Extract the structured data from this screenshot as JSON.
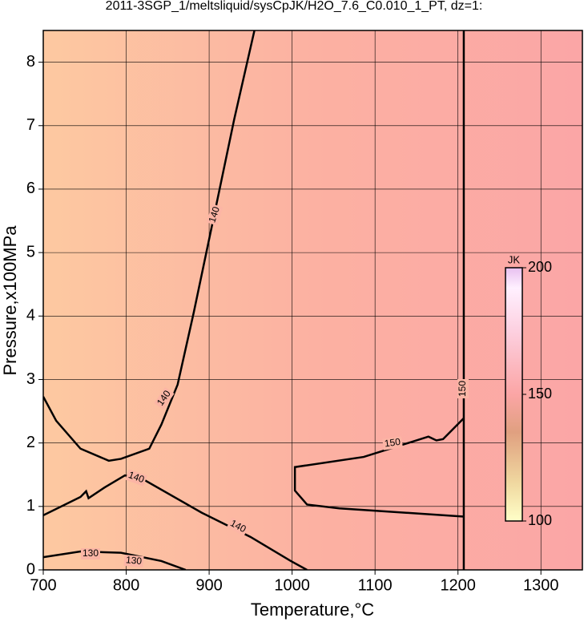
{
  "chart_data": {
    "type": "contour",
    "title": "2011-3SGP_1/meltsliquid/sysCpJK/H2O_7.6_C0.010_1_PT, dz=1:",
    "x_label": "Temperature,°C",
    "y_label": "Pressure,x100MPa",
    "xlim": [
      700,
      1350
    ],
    "ylim": [
      0,
      8.5
    ],
    "xticks": [
      700,
      800,
      900,
      1000,
      1100,
      1200,
      1300
    ],
    "yticks": [
      0,
      1,
      2,
      3,
      4,
      5,
      6,
      7,
      8
    ],
    "grid": true,
    "contours": [
      {
        "level": 140,
        "x": [
          700,
          715.6,
          744.9,
          779,
          793.7,
          827.8,
          842.4,
          862,
          881.5,
          905.9,
          930.2,
          954.6
        ],
        "y": [
          2.73,
          2.35,
          1.91,
          1.72,
          1.75,
          1.91,
          2.29,
          2.92,
          4.06,
          5.58,
          7.1,
          8.5
        ]
      },
      {
        "level": 140,
        "x": [
          700,
          744.9,
          751.7,
          754.6,
          774.1,
          798.5,
          822.9,
          891.2,
          949.8,
          998.5,
          1018
        ],
        "y": [
          0.86,
          1.15,
          1.24,
          1.13,
          1.3,
          1.49,
          1.41,
          0.9,
          0.52,
          0.14,
          0
        ]
      },
      {
        "level": 130,
        "x": [
          700,
          744.9,
          793.7,
          842.4,
          871.7
        ],
        "y": [
          0.2,
          0.29,
          0.27,
          0.14,
          0
        ]
      },
      {
        "level": 150,
        "x": [
          1207,
          1057,
          1018,
          1003.4,
          1003.4,
          1086.3,
          1164.4,
          1174,
          1182,
          1207
        ],
        "y": [
          0.84,
          0.97,
          1.03,
          1.25,
          1.62,
          1.78,
          2.1,
          2.04,
          2.06,
          2.39
        ]
      },
      {
        "level": 150,
        "x": [
          1207,
          1207
        ],
        "y": [
          0,
          8.5
        ]
      }
    ],
    "colorbar": {
      "label": "JK",
      "lim": [
        100,
        200
      ],
      "ticks": [
        100,
        150,
        200
      ]
    }
  }
}
